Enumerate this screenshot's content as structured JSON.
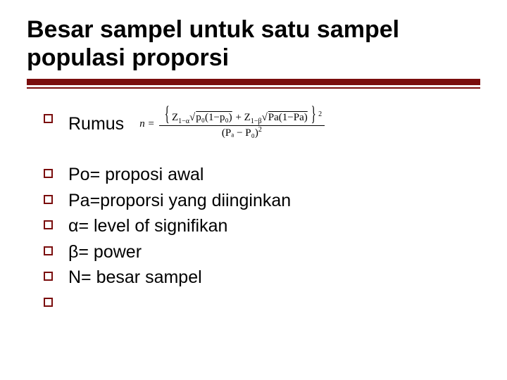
{
  "title": "Besar sampel untuk satu sampel populasi proporsi",
  "accent_color": "#7a0d0d",
  "items": {
    "rumus": "Rumus",
    "po": "Po= proposi awal",
    "pa": "Pa=proporsi yang diinginkan",
    "alpha": "α= level of signifikan",
    "beta": "β= power",
    "n": "N= besar sampel"
  },
  "formula": {
    "lhs": "n =",
    "num_parts": {
      "z1": "Z",
      "z1_sub": "1−α",
      "root1_inner": "p₀(1−p₀)",
      "plus": " + ",
      "z2": "Z",
      "z2_sub": "1−β",
      "root2_inner": "Pa(1−Pa)"
    },
    "den": "(Pₐ − P₀)",
    "exp": "2"
  }
}
